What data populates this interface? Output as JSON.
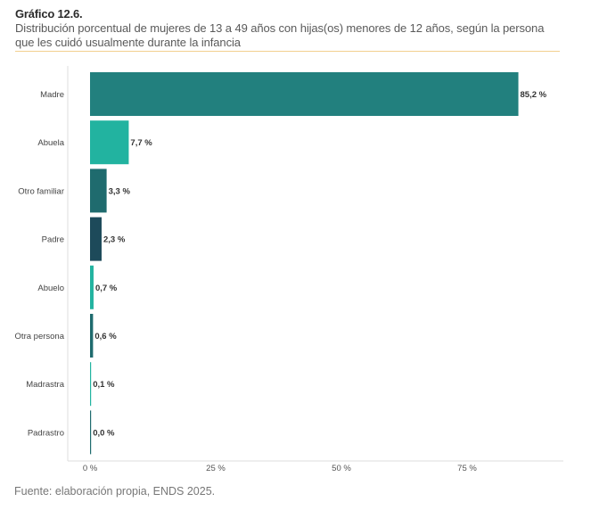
{
  "header": {
    "title": "Gráfico 12.6.",
    "subtitle": "Distribución porcentual de mujeres de 13 a 49 años con hijas(os) menores de 12 años, según la persona que les cuidó usualmente durante la infancia"
  },
  "footer": {
    "source": "Fuente: elaboración propia, ENDS 2025."
  },
  "chart_data": {
    "type": "bar",
    "orientation": "horizontal",
    "title": "Gráfico 12.6.",
    "subtitle": "Distribución porcentual de mujeres de 13 a 49 años con hijas(os) menores de 12 años, según la persona que les cuidó usualmente durante la infancia",
    "xlabel": "",
    "ylabel": "",
    "xlim": [
      0,
      100
    ],
    "grid": false,
    "legend": "none",
    "x_ticks": [
      0,
      25,
      50,
      75
    ],
    "x_tick_labels": [
      "0 %",
      "25 %",
      "50 %",
      "75 %"
    ],
    "categories": [
      "Madre",
      "Abuela",
      "Otro familiar",
      "Padre",
      "Abuelo",
      "Otra persona",
      "Madrastra",
      "Padrastro"
    ],
    "values": [
      85.2,
      7.7,
      3.3,
      2.3,
      0.7,
      0.6,
      0.1,
      0.0
    ],
    "value_labels": [
      "85,2 %",
      "7,7 %",
      "3,3 %",
      "2,3 %",
      "0,7 %",
      "0,6 %",
      "0,1 %",
      "0,0 %"
    ],
    "colors": [
      "#22807e",
      "#22b3a0",
      "#1f6b6e",
      "#1d4a5a",
      "#22b3a0",
      "#1f6b6e",
      "#22b3a0",
      "#1f6b6e"
    ],
    "axis_color": "#dcdcdc"
  }
}
